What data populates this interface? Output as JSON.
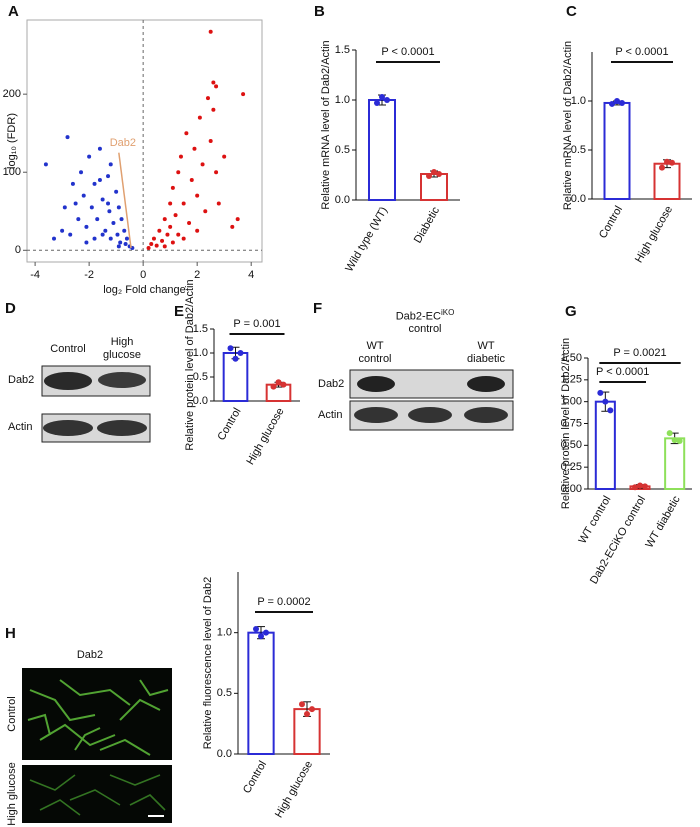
{
  "chart_data": [
    {
      "type": "scatter",
      "panel": "A",
      "xlabel": "log₂ Fold change",
      "ylabel": "log₁₀ (FDR)",
      "annotation": "Dab2",
      "xlim": [
        -4.3,
        4.4
      ],
      "ylim": [
        -15,
        295
      ],
      "xticks": [
        -4,
        -2,
        0,
        2,
        4
      ],
      "yticks": [
        0,
        100,
        200
      ],
      "vlines": [
        0
      ],
      "hlines": [
        0
      ],
      "series": [
        {
          "color": "#2233cc",
          "x": [
            -3.6,
            -3.3,
            -3.0,
            -2.9,
            -2.8,
            -2.6,
            -2.5,
            -2.4,
            -2.3,
            -2.2,
            -2.1,
            -2.0,
            -1.9,
            -1.8,
            -1.7,
            -1.6,
            -1.5,
            -1.4,
            -1.3,
            -1.25,
            -1.2,
            -1.1,
            -1.0,
            -0.95,
            -0.9,
            -0.85,
            -0.8,
            -0.7,
            -0.65,
            -0.6,
            -0.5,
            -0.4,
            -1.5,
            -1.8,
            -2.1,
            -1.2,
            -0.9,
            -2.7,
            -1.6,
            -1.3
          ],
          "y": [
            110,
            15,
            25,
            55,
            145,
            85,
            60,
            40,
            100,
            70,
            30,
            120,
            55,
            85,
            40,
            130,
            65,
            25,
            95,
            50,
            110,
            35,
            75,
            20,
            55,
            10,
            40,
            25,
            8,
            15,
            5,
            3,
            20,
            15,
            10,
            15,
            5,
            20,
            90,
            60
          ]
        },
        {
          "color": "#dd1111",
          "x": [
            0.2,
            0.3,
            0.4,
            0.5,
            0.6,
            0.7,
            0.8,
            0.9,
            1.0,
            1.0,
            1.1,
            1.2,
            1.3,
            1.3,
            1.4,
            1.5,
            1.6,
            1.7,
            1.8,
            1.9,
            2.0,
            2.1,
            2.2,
            2.3,
            2.4,
            2.5,
            2.6,
            2.7,
            2.8,
            2.5,
            2.6,
            2.7,
            3.0,
            3.3,
            3.5,
            3.7,
            1.1,
            1.5,
            2.0,
            0.8
          ],
          "y": [
            3,
            8,
            15,
            6,
            25,
            12,
            40,
            20,
            60,
            30,
            80,
            45,
            100,
            20,
            120,
            60,
            150,
            35,
            90,
            130,
            70,
            170,
            110,
            50,
            195,
            140,
            180,
            100,
            60,
            280,
            215,
            210,
            120,
            30,
            40,
            200,
            10,
            15,
            25,
            5
          ]
        }
      ]
    },
    {
      "type": "bar",
      "panel": "B",
      "ylabel": "Relative mRNA level of Dab2/Actin",
      "categories": [
        "Wild type (WT)",
        "Diabetic"
      ],
      "colors": [
        "#2b2bd6",
        "#d63333"
      ],
      "values": [
        1.0,
        0.26
      ],
      "errors": [
        0.05,
        0.03
      ],
      "points": [
        [
          0.97,
          1.03,
          1.0
        ],
        [
          0.24,
          0.28,
          0.26
        ]
      ],
      "ylim": [
        0,
        1.5
      ],
      "yticks": [
        {
          "value": 0,
          "label": "0.0"
        },
        0.5,
        {
          "value": 1,
          "label": "1.0"
        },
        1.5
      ],
      "annotations": [
        "P < 0.0001"
      ]
    },
    {
      "type": "bar",
      "panel": "C",
      "ylabel": "Relative mRNA level of Dab2/Actin",
      "categories": [
        "Control",
        "High glucose"
      ],
      "colors": [
        "#2b2bd6",
        "#d63333"
      ],
      "values": [
        0.98,
        0.36
      ],
      "errors": [
        0.02,
        0.04
      ],
      "points": [
        [
          0.97,
          1.0,
          0.98
        ],
        [
          0.32,
          0.38,
          0.37
        ]
      ],
      "ylim": [
        0,
        1.5
      ],
      "yticks": [
        {
          "value": 0,
          "label": "0.0"
        },
        0.5,
        {
          "value": 1,
          "label": "1.0"
        }
      ],
      "annotations": [
        "P < 0.0001"
      ]
    },
    {
      "type": "bar",
      "panel": "E",
      "ylabel": "Relative protein level of Dab2/Actin",
      "categories": [
        "Control",
        "High glucose"
      ],
      "colors": [
        "#2b2bd6",
        "#d63333"
      ],
      "values": [
        1.0,
        0.34
      ],
      "errors": [
        0.12,
        0.05
      ],
      "points": [
        [
          1.1,
          0.88,
          1.0
        ],
        [
          0.3,
          0.39,
          0.34
        ]
      ],
      "ylim": [
        0,
        1.5
      ],
      "yticks": [
        {
          "value": 0,
          "label": "0.0"
        },
        0.5,
        {
          "value": 1,
          "label": "1.0"
        },
        1.5
      ],
      "annotations": [
        "P = 0.001"
      ]
    },
    {
      "type": "bar",
      "panel": "G",
      "ylabel": "Relative protein level of Dab2/Actin",
      "categories": [
        "WT  control",
        "Dab2-ECiKO  control",
        "WT  diabetic"
      ],
      "colors": [
        "#2b2bd6",
        "#d63333",
        "#8ee05a"
      ],
      "values": [
        1.0,
        0.03,
        0.58
      ],
      "errors": [
        0.11,
        0.02,
        0.06
      ],
      "points": [
        [
          1.1,
          1.0,
          0.9
        ],
        [
          0.02,
          0.04,
          0.03
        ],
        [
          0.64,
          0.56,
          0.55
        ]
      ],
      "ylim": [
        0,
        1.5
      ],
      "yticks": [
        {
          "value": 0,
          "label": "0.00"
        },
        0.25,
        {
          "value": 0.5,
          "label": "0.50"
        },
        0.75,
        {
          "value": 1,
          "label": "1.00"
        },
        1.25,
        {
          "value": 1.5,
          "label": "1.50"
        }
      ],
      "annotations": [
        "P = 0.0021",
        "P < 0.0001"
      ]
    },
    {
      "type": "bar",
      "panel": "H",
      "ylabel": "Relative fluorescence level of Dab2",
      "categories": [
        "Control",
        "High glucose"
      ],
      "colors": [
        "#2b2bd6",
        "#d63333"
      ],
      "values": [
        1.0,
        0.37
      ],
      "errors": [
        0.05,
        0.06
      ],
      "points": [
        [
          1.03,
          0.97,
          1.0
        ],
        [
          0.41,
          0.33,
          0.37
        ]
      ],
      "ylim": [
        0,
        1.5
      ],
      "yticks": [
        {
          "value": 0,
          "label": "0.0"
        },
        0.5,
        {
          "value": 1,
          "label": "1.0"
        }
      ],
      "annotations": [
        "P = 0.0002"
      ]
    }
  ],
  "blots": [
    {
      "panel": "D",
      "lanes": [
        "Control",
        "High glucose"
      ],
      "rows": [
        "Dab2",
        "Actin"
      ]
    },
    {
      "panel": "F",
      "header": {
        "text": "Dab2-EC",
        "sup": "iKO",
        "sub": "control"
      },
      "lanes": [
        "WT control",
        "WT diabetic"
      ],
      "rows": [
        "Dab2",
        "Actin"
      ]
    }
  ],
  "micrographs": {
    "title": "Dab2",
    "rows": [
      "Control",
      "High glucose"
    ]
  }
}
